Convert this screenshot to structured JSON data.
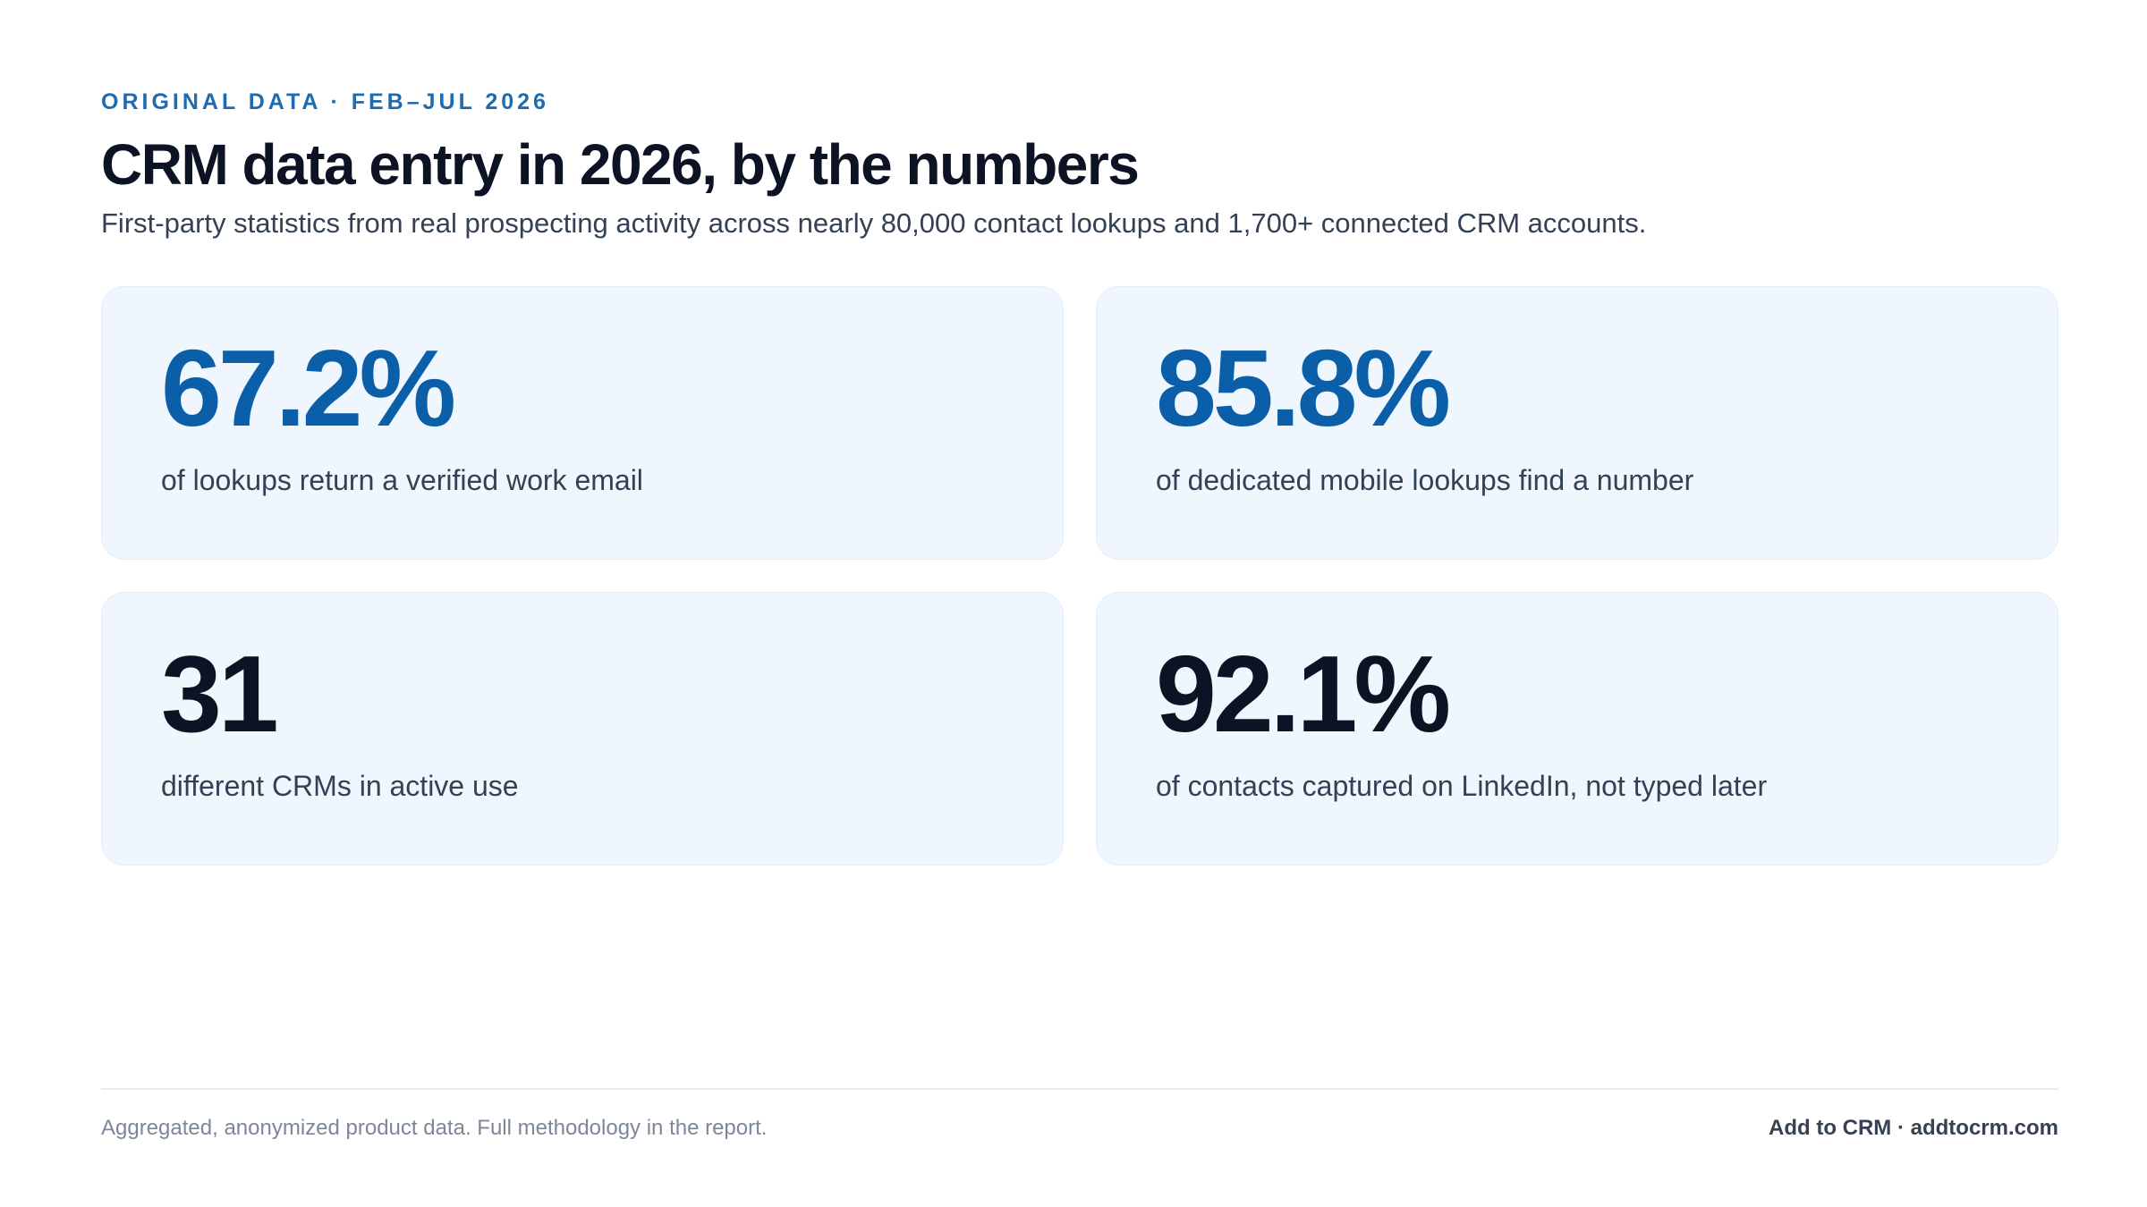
{
  "header": {
    "eyebrow": "ORIGINAL DATA · FEB–JUL 2026",
    "title": "CRM data entry in 2026, by the numbers",
    "subtitle": "First-party statistics from real prospecting activity across nearly 80,000 contact lookups and 1,700+ connected CRM accounts."
  },
  "stats": [
    {
      "value": "67.2%",
      "label": "of lookups return a verified work email",
      "color": "#0b5fa9"
    },
    {
      "value": "85.8%",
      "label": "of dedicated mobile lookups find a number",
      "color": "#0b5fa9"
    },
    {
      "value": "31",
      "label": "different CRMs in active use",
      "color": "#0b1324"
    },
    {
      "value": "92.1%",
      "label": "of contacts captured on LinkedIn, not typed later",
      "color": "#0b1324"
    }
  ],
  "footer": {
    "note": "Aggregated, anonymized product data. Full methodology in the report.",
    "brand": "Add to CRM · addtocrm.com"
  }
}
